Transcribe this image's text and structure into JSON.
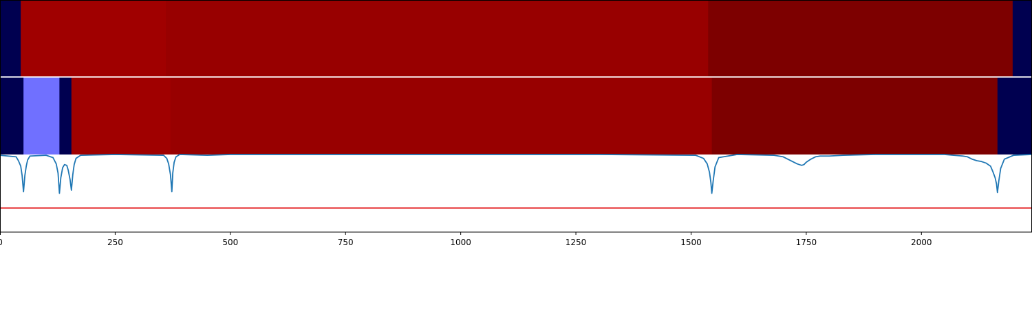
{
  "chart_data": {
    "type": "heatmap",
    "xlim": [
      0,
      2240
    ],
    "x_ticks": [
      0,
      250,
      500,
      750,
      1000,
      1250,
      1500,
      1750,
      2000
    ],
    "tick_labels": [
      "0",
      "250",
      "500",
      "750",
      "1000",
      "1250",
      "1500",
      "1750",
      "2000"
    ],
    "grid": false,
    "legend": "none",
    "segment_tracks": [
      {
        "segments": [
          {
            "start": 0,
            "end": 45,
            "color": "#000050"
          },
          {
            "start": 45,
            "end": 360,
            "color": "#a00000"
          },
          {
            "start": 360,
            "end": 1537,
            "color": "#980000"
          },
          {
            "start": 1537,
            "end": 2198,
            "color": "#7d0000"
          },
          {
            "start": 2198,
            "end": 2240,
            "color": "#000050"
          }
        ]
      },
      {
        "segments": [
          {
            "start": 0,
            "end": 51,
            "color": "#000050"
          },
          {
            "start": 51,
            "end": 129,
            "color": "#7070ff"
          },
          {
            "start": 129,
            "end": 155,
            "color": "#000050"
          },
          {
            "start": 155,
            "end": 370,
            "color": "#a00000"
          },
          {
            "start": 370,
            "end": 1545,
            "color": "#980000"
          },
          {
            "start": 1545,
            "end": 2165,
            "color": "#7d0000"
          },
          {
            "start": 2165,
            "end": 2240,
            "color": "#000050"
          }
        ]
      }
    ],
    "signal": {
      "color": "#1f77b4",
      "ylim": [
        0,
        1
      ],
      "x": [
        0,
        35,
        40,
        45,
        48,
        51,
        54,
        57,
        60,
        65,
        100,
        115,
        122,
        126,
        129,
        132,
        136,
        140,
        145,
        148,
        152,
        155,
        158,
        161,
        165,
        175,
        250,
        355,
        362,
        366,
        370,
        373,
        375,
        378,
        382,
        390,
        450,
        500,
        900,
        1300,
        1510,
        1527,
        1535,
        1540,
        1543,
        1545,
        1548,
        1552,
        1560,
        1600,
        1680,
        1700,
        1710,
        1720,
        1730,
        1740,
        1745,
        1750,
        1760,
        1770,
        1780,
        1800,
        1830,
        1900,
        2050,
        2090,
        2100,
        2110,
        2120,
        2130,
        2140,
        2150,
        2155,
        2160,
        2163,
        2165,
        2168,
        2172,
        2180,
        2200,
        2240
      ],
      "y": [
        0.99,
        0.97,
        0.92,
        0.85,
        0.73,
        0.52,
        0.73,
        0.85,
        0.93,
        0.98,
        0.99,
        0.96,
        0.88,
        0.76,
        0.5,
        0.7,
        0.83,
        0.87,
        0.86,
        0.8,
        0.68,
        0.54,
        0.74,
        0.87,
        0.95,
        0.99,
        1.0,
        0.99,
        0.95,
        0.88,
        0.74,
        0.52,
        0.76,
        0.9,
        0.97,
        1.0,
        0.99,
        1.0,
        1.0,
        1.0,
        0.99,
        0.95,
        0.88,
        0.77,
        0.64,
        0.5,
        0.66,
        0.84,
        0.96,
        1.0,
        0.99,
        0.97,
        0.94,
        0.91,
        0.88,
        0.86,
        0.87,
        0.9,
        0.94,
        0.97,
        0.98,
        0.98,
        0.99,
        1.0,
        1.0,
        0.98,
        0.97,
        0.94,
        0.92,
        0.91,
        0.89,
        0.85,
        0.78,
        0.7,
        0.62,
        0.51,
        0.66,
        0.82,
        0.94,
        0.99,
        1.0
      ]
    },
    "threshold": {
      "y": 0.31,
      "color": "#e31a1c"
    }
  }
}
